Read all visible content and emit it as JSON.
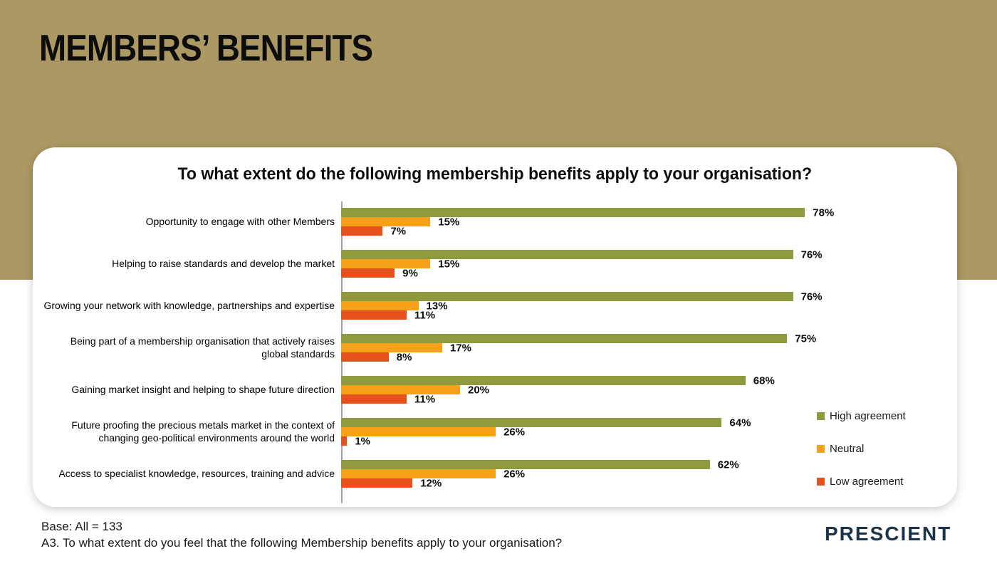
{
  "slide": {
    "title": "MEMBERS’ BENEFITS",
    "background_color": "#AC9862",
    "card_color": "#FFFFFF"
  },
  "chart_data": {
    "type": "bar",
    "orientation": "horizontal",
    "title": "To what extent do the following membership benefits apply to your organisation?",
    "categories": [
      "Opportunity to engage with other Members",
      "Helping to raise standards and develop the market",
      "Growing your network with knowledge, partnerships and expertise",
      "Being part of a membership organisation that actively raises global standards",
      "Gaining market insight and helping to shape future direction",
      "Future proofing the precious metals market in the context of changing geo-political environments around the world",
      "Access to specialist knowledge, resources, training and advice"
    ],
    "series": [
      {
        "name": "High agreement",
        "color": "#8F9A3E",
        "values": [
          78,
          76,
          76,
          75,
          68,
          64,
          62
        ]
      },
      {
        "name": "Neutral",
        "color": "#F7A11A",
        "values": [
          15,
          15,
          13,
          17,
          20,
          26,
          26
        ]
      },
      {
        "name": "Low agreement",
        "color": "#E5511D",
        "values": [
          7,
          9,
          11,
          8,
          11,
          1,
          12
        ]
      }
    ],
    "value_suffix": "%",
    "xlim": [
      0,
      80
    ],
    "grid": false,
    "legend_position": "right",
    "axis_line_color": "#A3A3A3"
  },
  "footer": {
    "base_note": "Base: All = 133",
    "question_note": "A3. To what extent do you feel that the following Membership benefits apply to your organisation?",
    "brand": "PRESCIENT",
    "brand_color": "#1D3448"
  }
}
